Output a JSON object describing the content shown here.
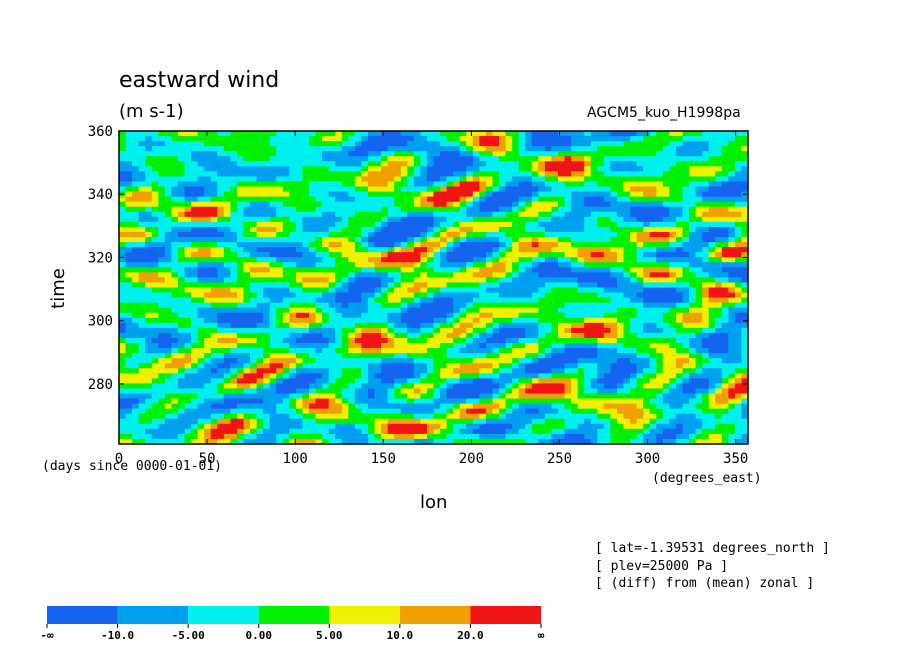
{
  "chart_data": {
    "type": "heatmap",
    "title": "eastward wind",
    "units": "(m s-1)",
    "run_label": "AGCM5_kuo_H1998pa",
    "xlabel": "lon",
    "ylabel": "time",
    "x_units": "(degrees_east)",
    "y_units": "(days since 0000-01-01)",
    "xlim": [
      0,
      357
    ],
    "ylim": [
      261,
      360
    ],
    "x_ticks": [
      0,
      50,
      100,
      150,
      200,
      250,
      300,
      350
    ],
    "y_ticks": [
      280,
      300,
      320,
      340,
      360
    ],
    "info_lines": [
      "[ lat=-1.39531 degrees_north ]",
      "[ plev=25000 Pa ]",
      "[ (diff) from (mean) zonal ]"
    ],
    "colorbar": {
      "labels": [
        "-∞",
        "-10.0",
        "-5.00",
        "0.00",
        "5.00",
        "10.0",
        "20.0",
        "∞"
      ],
      "colors": [
        "#1464f0",
        "#00a0f0",
        "#00f0f0",
        "#00f000",
        "#f0f000",
        "#f0a000",
        "#f01414"
      ]
    }
  }
}
